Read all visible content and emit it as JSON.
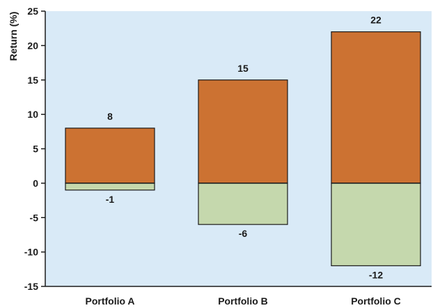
{
  "chart_data": {
    "type": "bar",
    "title": "",
    "xlabel": "",
    "ylabel": "Return (%)",
    "ylim": [
      -15,
      25
    ],
    "yticks": [
      -15,
      -10,
      -5,
      0,
      5,
      10,
      15,
      20,
      25
    ],
    "ytick_labels": [
      "-15",
      "-10",
      "-5",
      "0",
      "5",
      "10",
      "15",
      "20",
      "25"
    ],
    "categories": [
      "Portfolio A",
      "Portfolio B",
      "Portfolio C"
    ],
    "series": [
      {
        "values": [
          8,
          15,
          22
        ],
        "data_labels": [
          "8",
          "15",
          "22"
        ],
        "color": "#cc7232"
      },
      {
        "values": [
          -1,
          -6,
          -12
        ],
        "data_labels": [
          "-1",
          "-6",
          "-12"
        ],
        "color": "#c5d8ad"
      }
    ],
    "background_color": "#d9eaf7",
    "grid": false,
    "legend": "none"
  }
}
